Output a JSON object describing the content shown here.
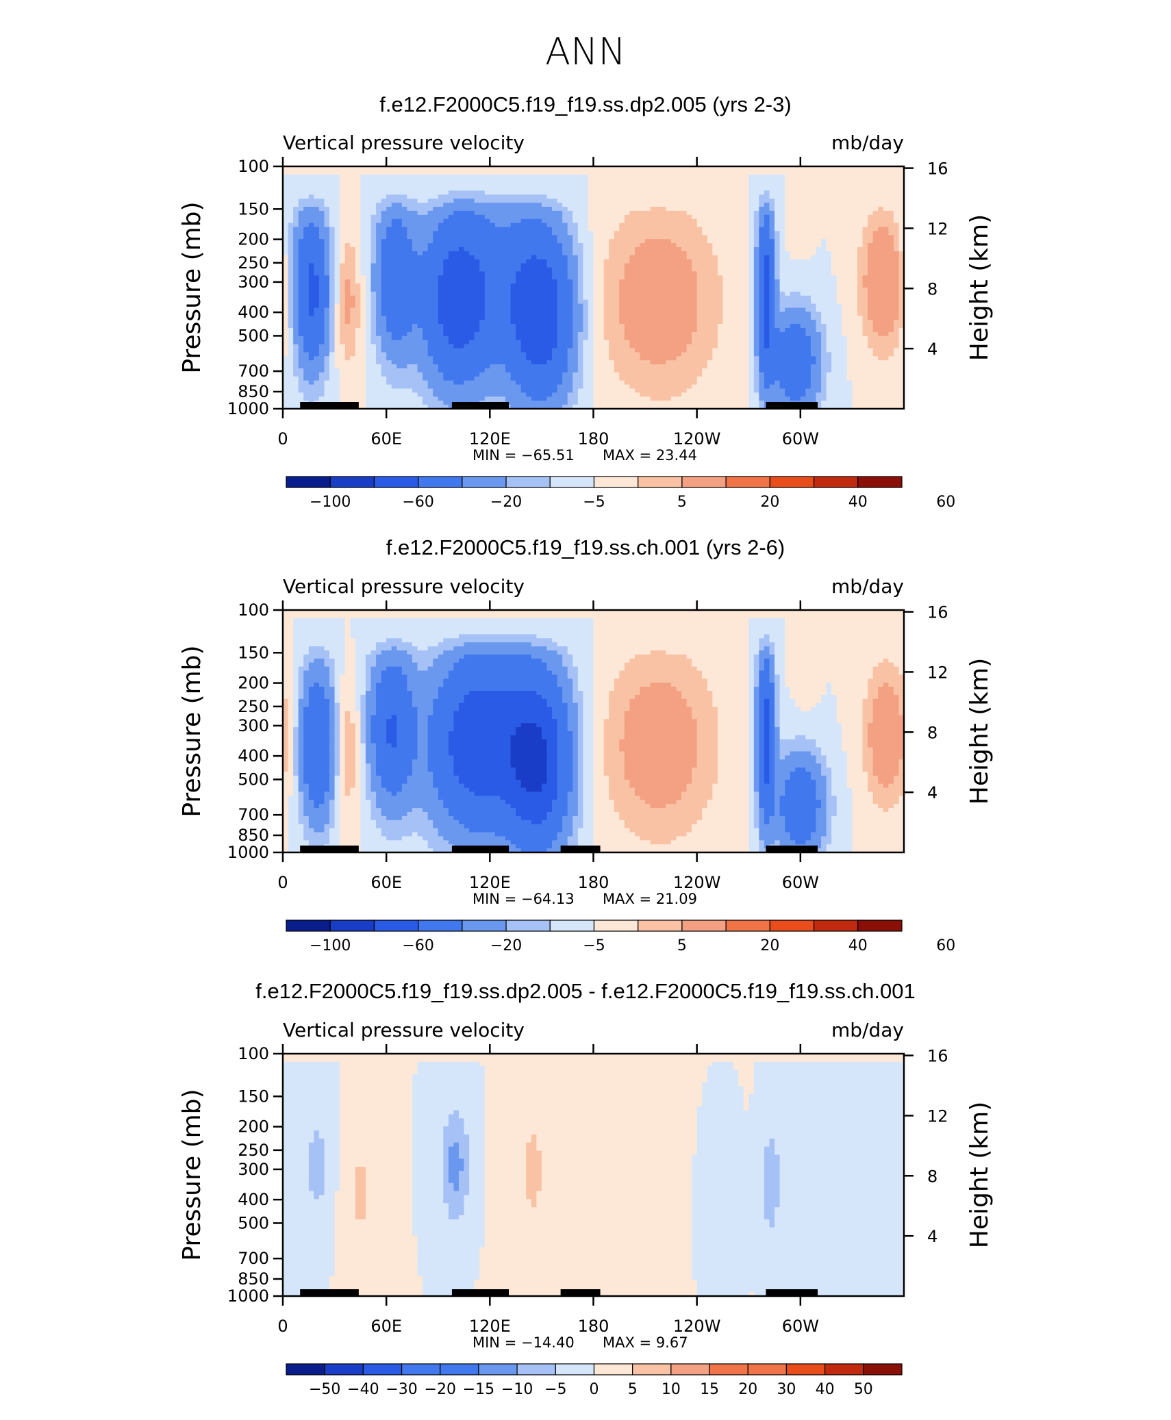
{
  "page": {
    "title": "ANN"
  },
  "colors": {
    "main_scale": [
      "#0a1d8c",
      "#1a3dc7",
      "#2a5be6",
      "#4178ee",
      "#6b98ef",
      "#a6c1f5",
      "#d6e6fa",
      "#fde8d8",
      "#f9c2a4",
      "#f4a082",
      "#f07447",
      "#e84d1b",
      "#c22a10",
      "#8a0f07"
    ],
    "diff_scale": [
      "#0a1d8c",
      "#1a3dc7",
      "#2a5be6",
      "#4178ee",
      "#6b98ef",
      "#a6c1f5",
      "#d6e6fa",
      "#fde8d8",
      "#f9c2a4",
      "#f4a082",
      "#f07447",
      "#e84d1b",
      "#c22a10",
      "#8a0f07"
    ],
    "land": "#000000"
  },
  "chart_data": [
    {
      "type": "heatmap",
      "title": "f.e12.F2000C5.f19_f19.ss.dp2.005 (yrs 2-3)",
      "left_string": "Vertical pressure velocity",
      "right_string": "mb/day",
      "ylabel": "Pressure (mb)",
      "y2label": "Height (km)",
      "x_ticks": [
        "0",
        "60E",
        "120E",
        "180",
        "120W",
        "60W"
      ],
      "x_tick_lon": [
        0,
        60,
        120,
        180,
        240,
        300
      ],
      "xlim": [
        0,
        360
      ],
      "y_ticks": [
        "100",
        "150",
        "200",
        "250",
        "300",
        "400",
        "500",
        "700",
        "850",
        "1000"
      ],
      "y_tick_values": [
        100,
        150,
        200,
        250,
        300,
        400,
        500,
        700,
        850,
        1000
      ],
      "ylim": [
        1000,
        100
      ],
      "y_scale": "log",
      "y2_ticks": [
        "16",
        "12",
        "8",
        "4"
      ],
      "y2_tick_values": [
        16,
        12,
        8,
        4
      ],
      "min_label": "MIN = −65.51",
      "max_label": "MAX =   23.44",
      "levels": [
        "−100",
        "−60",
        "−20",
        "−5",
        "5",
        "20",
        "40",
        "60"
      ],
      "level_bounds": [
        -100,
        -80,
        -60,
        -40,
        -20,
        -10,
        -5,
        0,
        5,
        10,
        20,
        30,
        40,
        50,
        60
      ],
      "features": [
        {
          "lon": 17,
          "p": 330,
          "value": -45,
          "lw": 7,
          "ph": 0.9
        },
        {
          "lon": 38,
          "p": 360,
          "value": 12,
          "lw": 5,
          "ph": 0.8
        },
        {
          "lon": 65,
          "p": 290,
          "value": -35,
          "lw": 8,
          "ph": 0.9
        },
        {
          "lon": 100,
          "p": 360,
          "value": -45,
          "lw": 14,
          "ph": 1.0
        },
        {
          "lon": 150,
          "p": 420,
          "value": -50,
          "lw": 13,
          "ph": 1.0
        },
        {
          "lon": 125,
          "p": 300,
          "value": -20,
          "lw": 22,
          "ph": 1.1
        },
        {
          "lon": 218,
          "p": 360,
          "value": 16,
          "lw": 24,
          "ph": 1.1
        },
        {
          "lon": 280,
          "p": 330,
          "value": -50,
          "lw": 3.5,
          "ph": 1.0
        },
        {
          "lon": 297,
          "p": 640,
          "value": -35,
          "lw": 10,
          "ph": 0.6
        },
        {
          "lon": 348,
          "p": 300,
          "value": 20,
          "lw": 9,
          "ph": 0.8
        },
        {
          "lon": 300,
          "p": 180,
          "value": 3,
          "lw": 4,
          "ph": 0.3
        },
        {
          "lon": 5,
          "p": 200,
          "value": -3,
          "lw": 8,
          "ph": 0.6
        }
      ],
      "land_segments": [
        [
          10,
          44
        ],
        [
          98,
          131
        ],
        [
          280,
          310
        ]
      ]
    },
    {
      "type": "heatmap",
      "title": "f.e12.F2000C5.f19_f19.ss.ch.001 (yrs 2-6)",
      "left_string": "Vertical pressure velocity",
      "right_string": "mb/day",
      "ylabel": "Pressure (mb)",
      "y2label": "Height (km)",
      "x_ticks": [
        "0",
        "60E",
        "120E",
        "180",
        "120W",
        "60W"
      ],
      "x_tick_lon": [
        0,
        60,
        120,
        180,
        240,
        300
      ],
      "xlim": [
        0,
        360
      ],
      "y_ticks": [
        "100",
        "150",
        "200",
        "250",
        "300",
        "400",
        "500",
        "700",
        "850",
        "1000"
      ],
      "y_tick_values": [
        100,
        150,
        200,
        250,
        300,
        400,
        500,
        700,
        850,
        1000
      ],
      "ylim": [
        1000,
        100
      ],
      "y_scale": "log",
      "y2_ticks": [
        "16",
        "12",
        "8",
        "4"
      ],
      "y2_tick_values": [
        16,
        12,
        8,
        4
      ],
      "min_label": "MIN = −64.13",
      "max_label": "MAX =   21.09",
      "levels": [
        "−100",
        "−60",
        "−20",
        "−5",
        "5",
        "20",
        "40",
        "60"
      ],
      "level_bounds": [
        -100,
        -80,
        -60,
        -40,
        -20,
        -10,
        -5,
        0,
        5,
        10,
        20,
        30,
        40,
        50,
        60
      ],
      "features": [
        {
          "lon": 20,
          "p": 360,
          "value": -40,
          "lw": 7,
          "ph": 0.9
        },
        {
          "lon": 38,
          "p": 380,
          "value": 10,
          "lw": 5,
          "ph": 0.8
        },
        {
          "lon": 63,
          "p": 310,
          "value": -40,
          "lw": 9,
          "ph": 0.9
        },
        {
          "lon": 110,
          "p": 380,
          "value": -40,
          "lw": 18,
          "ph": 1.0
        },
        {
          "lon": 148,
          "p": 440,
          "value": -55,
          "lw": 13,
          "ph": 1.0
        },
        {
          "lon": 125,
          "p": 280,
          "value": -20,
          "lw": 24,
          "ph": 1.1
        },
        {
          "lon": 218,
          "p": 360,
          "value": 16,
          "lw": 23,
          "ph": 1.1
        },
        {
          "lon": 280,
          "p": 330,
          "value": -50,
          "lw": 3.5,
          "ph": 1.0
        },
        {
          "lon": 300,
          "p": 640,
          "value": -35,
          "lw": 10,
          "ph": 0.6
        },
        {
          "lon": 350,
          "p": 330,
          "value": 18,
          "lw": 9,
          "ph": 0.8
        },
        {
          "lon": 303,
          "p": 200,
          "value": 3,
          "lw": 4,
          "ph": 0.3
        }
      ],
      "land_segments": [
        [
          10,
          44
        ],
        [
          98,
          131
        ],
        [
          161,
          184
        ],
        [
          280,
          310
        ]
      ]
    },
    {
      "type": "heatmap",
      "title": "f.e12.F2000C5.f19_f19.ss.dp2.005 - f.e12.F2000C5.f19_f19.ss.ch.001",
      "left_string": "Vertical pressure velocity",
      "right_string": "mb/day",
      "ylabel": "Pressure (mb)",
      "y2label": "Height (km)",
      "x_ticks": [
        "0",
        "60E",
        "120E",
        "180",
        "120W",
        "60W"
      ],
      "x_tick_lon": [
        0,
        60,
        120,
        180,
        240,
        300
      ],
      "xlim": [
        0,
        360
      ],
      "y_ticks": [
        "100",
        "150",
        "200",
        "250",
        "300",
        "400",
        "500",
        "700",
        "850",
        "1000"
      ],
      "y_tick_values": [
        100,
        150,
        200,
        250,
        300,
        400,
        500,
        700,
        850,
        1000
      ],
      "ylim": [
        1000,
        100
      ],
      "y_scale": "log",
      "y2_ticks": [
        "16",
        "12",
        "8",
        "4"
      ],
      "y2_tick_values": [
        16,
        12,
        8,
        4
      ],
      "min_label": "MIN = −14.40",
      "max_label": "MAX =    9.67",
      "levels": [
        "−50",
        "−40",
        "−30",
        "−20",
        "−15",
        "−10",
        "−5",
        "0",
        "5",
        "10",
        "15",
        "20",
        "30",
        "40",
        "50"
      ],
      "level_bounds": [
        -60,
        -50,
        -40,
        -30,
        -20,
        -15,
        -10,
        -5,
        0,
        5,
        10,
        15,
        20,
        30,
        40,
        50,
        60
      ],
      "features": [
        {
          "lon": 20,
          "p": 290,
          "value": -7,
          "lw": 6,
          "ph": 0.7
        },
        {
          "lon": 45,
          "p": 370,
          "value": 6,
          "lw": 7,
          "ph": 0.8
        },
        {
          "lon": 100,
          "p": 290,
          "value": -12,
          "lw": 6,
          "ph": 0.7
        },
        {
          "lon": 145,
          "p": 300,
          "value": 6,
          "lw": 5,
          "ph": 0.8
        },
        {
          "lon": 190,
          "p": 350,
          "value": 2,
          "lw": 30,
          "ph": 1.2
        },
        {
          "lon": 283,
          "p": 340,
          "value": -9,
          "lw": 4,
          "ph": 0.7
        },
        {
          "lon": 340,
          "p": 300,
          "value": -2,
          "lw": 14,
          "ph": 1.0
        },
        {
          "lon": 250,
          "p": 400,
          "value": -2,
          "lw": 8,
          "ph": 0.9
        }
      ],
      "land_segments": [
        [
          10,
          44
        ],
        [
          98,
          131
        ],
        [
          161,
          184
        ],
        [
          280,
          310
        ]
      ]
    }
  ]
}
